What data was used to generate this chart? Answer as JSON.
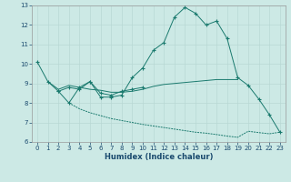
{
  "xlabel": "Humidex (Indice chaleur)",
  "background_color": "#cce9e5",
  "grid_color": "#b8d8d4",
  "line_color": "#1a7a6e",
  "x_values": [
    0,
    1,
    2,
    3,
    4,
    5,
    6,
    7,
    8,
    9,
    10,
    11,
    12,
    13,
    14,
    15,
    16,
    17,
    18,
    19,
    20,
    21,
    22,
    23
  ],
  "line1_y": [
    10.1,
    9.1,
    8.6,
    8.0,
    8.8,
    9.1,
    8.3,
    8.3,
    8.4,
    9.3,
    9.8,
    10.7,
    11.1,
    12.4,
    12.9,
    12.6,
    12.0,
    12.2,
    11.3,
    9.3,
    8.9,
    8.2,
    7.4,
    6.5
  ],
  "line2_x": [
    2,
    3,
    4,
    5,
    6,
    7,
    8,
    9,
    10
  ],
  "line2_y": [
    8.6,
    8.8,
    8.7,
    9.1,
    8.5,
    8.4,
    8.6,
    8.7,
    8.8
  ],
  "line3_x": [
    1,
    2,
    3,
    4,
    5,
    6,
    7,
    8,
    9,
    10,
    11,
    12,
    13,
    14,
    15,
    16,
    17,
    18,
    19
  ],
  "line3_y": [
    9.1,
    8.7,
    8.9,
    8.8,
    8.7,
    8.65,
    8.55,
    8.55,
    8.6,
    8.7,
    8.85,
    8.95,
    9.0,
    9.05,
    9.1,
    9.15,
    9.2,
    9.2,
    9.2
  ],
  "line4_x": [
    3,
    4,
    5,
    6,
    7,
    8,
    9,
    10,
    11,
    12,
    13,
    14,
    15,
    16,
    17,
    18,
    19,
    20,
    21,
    22,
    23
  ],
  "line4_y": [
    8.0,
    7.7,
    7.5,
    7.35,
    7.2,
    7.1,
    7.0,
    6.9,
    6.82,
    6.74,
    6.66,
    6.58,
    6.5,
    6.45,
    6.38,
    6.3,
    6.24,
    6.55,
    6.48,
    6.42,
    6.5
  ],
  "ylim": [
    6,
    13
  ],
  "xlim": [
    -0.5,
    23.5
  ],
  "yticks": [
    6,
    7,
    8,
    9,
    10,
    11,
    12,
    13
  ],
  "xticks": [
    0,
    1,
    2,
    3,
    4,
    5,
    6,
    7,
    8,
    9,
    10,
    11,
    12,
    13,
    14,
    15,
    16,
    17,
    18,
    19,
    20,
    21,
    22,
    23
  ],
  "tick_fontsize": 5.0,
  "xlabel_fontsize": 6.0
}
